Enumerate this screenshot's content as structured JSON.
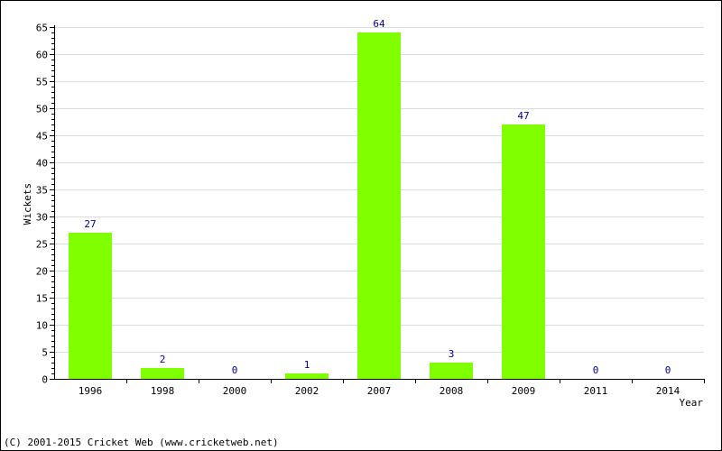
{
  "chart_data": {
    "type": "bar",
    "categories": [
      "1996",
      "1998",
      "2000",
      "2002",
      "2007",
      "2008",
      "2009",
      "2011",
      "2014"
    ],
    "values": [
      27,
      2,
      0,
      1,
      64,
      3,
      47,
      0,
      0
    ],
    "data_labels": [
      "27",
      "2",
      "0",
      "1",
      "64",
      "3",
      "47",
      "0",
      "0"
    ],
    "title": "",
    "xlabel": "Year",
    "ylabel": "Wickets",
    "ylim": [
      0,
      65
    ],
    "yticks": [
      0,
      5,
      10,
      15,
      20,
      25,
      30,
      35,
      40,
      45,
      50,
      55,
      60,
      65
    ],
    "grid": true,
    "colors": {
      "bar": "#7fff00",
      "value_label": "#000080",
      "grid": "#dcdcdc",
      "axis": "#000000"
    }
  },
  "footer": {
    "copyright": "(C) 2001-2015 Cricket Web (www.cricketweb.net)"
  }
}
